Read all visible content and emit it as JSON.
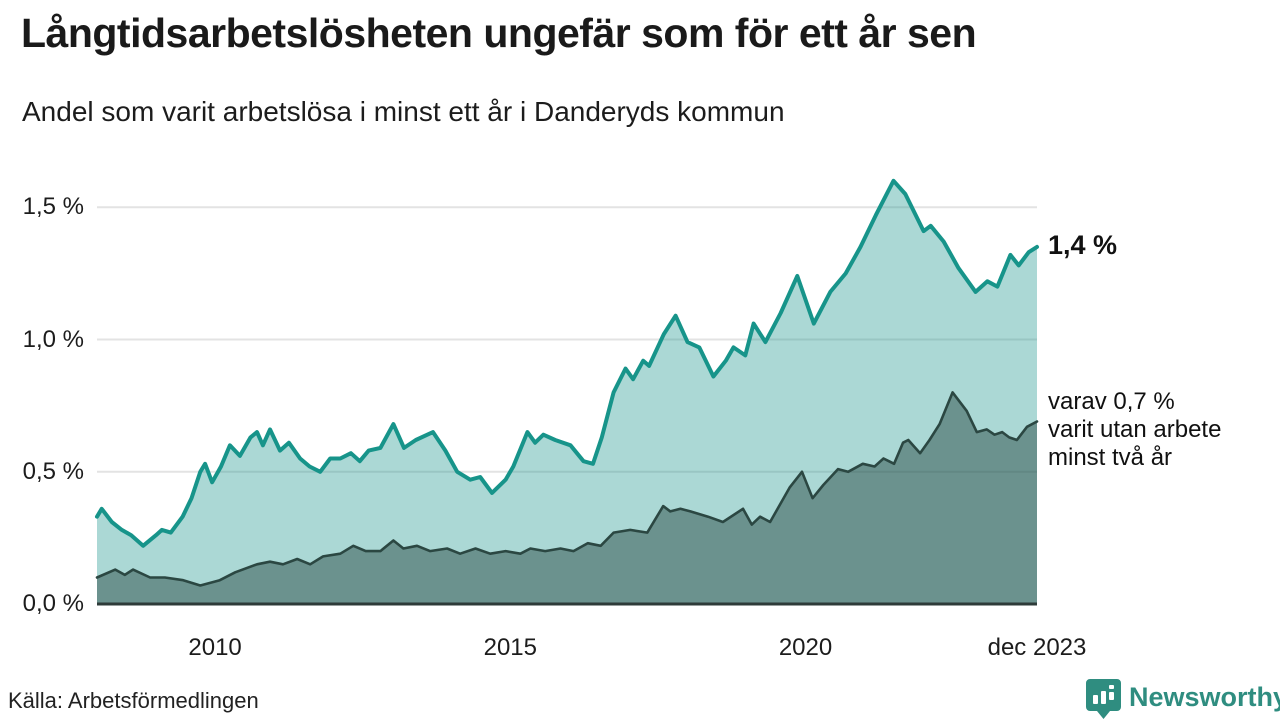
{
  "header": {
    "title": "Långtidsarbetslösheten ungefär som för ett år sen",
    "subtitle": "Andel som varit arbetslösa i minst ett år i Danderyds kommun"
  },
  "chart_data": {
    "type": "area",
    "title": "Långtidsarbetslösheten ungefär som för ett år sen",
    "subtitle": "Andel som varit arbetslösa i minst ett år i Danderyds kommun",
    "x_range": [
      2008.0,
      2023.92
    ],
    "y_range": [
      0,
      1.65
    ],
    "grid": "horizontal",
    "y_axis": {
      "ticks": [
        {
          "value": 0.0,
          "label": "0,0 %"
        },
        {
          "value": 0.5,
          "label": "0,5 %"
        },
        {
          "value": 1.0,
          "label": "1,0 %"
        },
        {
          "value": 1.5,
          "label": "1,5 %"
        }
      ]
    },
    "x_axis": {
      "ticks": [
        {
          "value": 2010,
          "label": "2010"
        },
        {
          "value": 2015,
          "label": "2015"
        },
        {
          "value": 2020,
          "label": "2020"
        },
        {
          "value": 2023.92,
          "label": "dec 2023"
        }
      ]
    },
    "series": [
      {
        "name": "minst ett år",
        "line_color": "#17948a",
        "fill_color": "rgba(23,148,138,0.36)",
        "line_width": 4,
        "points": [
          [
            2008.0,
            0.33
          ],
          [
            2008.08,
            0.36
          ],
          [
            2008.25,
            0.31
          ],
          [
            2008.42,
            0.28
          ],
          [
            2008.58,
            0.26
          ],
          [
            2008.78,
            0.22
          ],
          [
            2009.0,
            0.26
          ],
          [
            2009.1,
            0.28
          ],
          [
            2009.25,
            0.27
          ],
          [
            2009.45,
            0.33
          ],
          [
            2009.6,
            0.4
          ],
          [
            2009.75,
            0.5
          ],
          [
            2009.83,
            0.53
          ],
          [
            2009.95,
            0.46
          ],
          [
            2010.1,
            0.52
          ],
          [
            2010.25,
            0.6
          ],
          [
            2010.42,
            0.56
          ],
          [
            2010.6,
            0.63
          ],
          [
            2010.71,
            0.65
          ],
          [
            2010.81,
            0.6
          ],
          [
            2010.93,
            0.66
          ],
          [
            2011.1,
            0.58
          ],
          [
            2011.25,
            0.61
          ],
          [
            2011.44,
            0.55
          ],
          [
            2011.6,
            0.52
          ],
          [
            2011.78,
            0.5
          ],
          [
            2011.95,
            0.55
          ],
          [
            2012.12,
            0.55
          ],
          [
            2012.3,
            0.57
          ],
          [
            2012.45,
            0.54
          ],
          [
            2012.6,
            0.58
          ],
          [
            2012.8,
            0.59
          ],
          [
            2013.02,
            0.68
          ],
          [
            2013.2,
            0.59
          ],
          [
            2013.4,
            0.62
          ],
          [
            2013.69,
            0.65
          ],
          [
            2013.9,
            0.58
          ],
          [
            2014.1,
            0.5
          ],
          [
            2014.32,
            0.47
          ],
          [
            2014.49,
            0.48
          ],
          [
            2014.69,
            0.42
          ],
          [
            2014.92,
            0.47
          ],
          [
            2015.05,
            0.52
          ],
          [
            2015.29,
            0.65
          ],
          [
            2015.42,
            0.61
          ],
          [
            2015.56,
            0.64
          ],
          [
            2015.76,
            0.62
          ],
          [
            2016.02,
            0.6
          ],
          [
            2016.24,
            0.54
          ],
          [
            2016.4,
            0.53
          ],
          [
            2016.55,
            0.63
          ],
          [
            2016.75,
            0.8
          ],
          [
            2016.95,
            0.89
          ],
          [
            2017.08,
            0.85
          ],
          [
            2017.25,
            0.92
          ],
          [
            2017.35,
            0.9
          ],
          [
            2017.6,
            1.02
          ],
          [
            2017.8,
            1.09
          ],
          [
            2018.0,
            0.99
          ],
          [
            2018.2,
            0.97
          ],
          [
            2018.44,
            0.86
          ],
          [
            2018.65,
            0.92
          ],
          [
            2018.78,
            0.97
          ],
          [
            2018.98,
            0.94
          ],
          [
            2019.12,
            1.06
          ],
          [
            2019.32,
            0.99
          ],
          [
            2019.58,
            1.1
          ],
          [
            2019.86,
            1.24
          ],
          [
            2020.14,
            1.06
          ],
          [
            2020.42,
            1.18
          ],
          [
            2020.68,
            1.25
          ],
          [
            2020.93,
            1.35
          ],
          [
            2021.19,
            1.47
          ],
          [
            2021.49,
            1.6
          ],
          [
            2021.69,
            1.55
          ],
          [
            2022.0,
            1.41
          ],
          [
            2022.12,
            1.43
          ],
          [
            2022.34,
            1.37
          ],
          [
            2022.59,
            1.27
          ],
          [
            2022.88,
            1.18
          ],
          [
            2023.08,
            1.22
          ],
          [
            2023.25,
            1.2
          ],
          [
            2023.47,
            1.32
          ],
          [
            2023.61,
            1.28
          ],
          [
            2023.78,
            1.33
          ],
          [
            2023.92,
            1.35
          ]
        ]
      },
      {
        "name": "minst två år",
        "line_color": "#2b4742",
        "fill_color": "rgba(33,64,59,0.46)",
        "line_width": 2.6,
        "points": [
          [
            2008.0,
            0.1
          ],
          [
            2008.31,
            0.13
          ],
          [
            2008.47,
            0.11
          ],
          [
            2008.61,
            0.13
          ],
          [
            2008.9,
            0.1
          ],
          [
            2009.15,
            0.1
          ],
          [
            2009.46,
            0.09
          ],
          [
            2009.75,
            0.07
          ],
          [
            2010.08,
            0.09
          ],
          [
            2010.34,
            0.12
          ],
          [
            2010.71,
            0.15
          ],
          [
            2010.93,
            0.16
          ],
          [
            2011.15,
            0.15
          ],
          [
            2011.39,
            0.17
          ],
          [
            2011.61,
            0.15
          ],
          [
            2011.83,
            0.18
          ],
          [
            2012.12,
            0.19
          ],
          [
            2012.34,
            0.22
          ],
          [
            2012.55,
            0.2
          ],
          [
            2012.8,
            0.2
          ],
          [
            2013.02,
            0.24
          ],
          [
            2013.19,
            0.21
          ],
          [
            2013.42,
            0.22
          ],
          [
            2013.64,
            0.2
          ],
          [
            2013.93,
            0.21
          ],
          [
            2014.15,
            0.19
          ],
          [
            2014.41,
            0.21
          ],
          [
            2014.66,
            0.19
          ],
          [
            2014.92,
            0.2
          ],
          [
            2015.17,
            0.19
          ],
          [
            2015.34,
            0.21
          ],
          [
            2015.59,
            0.2
          ],
          [
            2015.85,
            0.21
          ],
          [
            2016.07,
            0.2
          ],
          [
            2016.31,
            0.23
          ],
          [
            2016.53,
            0.22
          ],
          [
            2016.75,
            0.27
          ],
          [
            2017.03,
            0.28
          ],
          [
            2017.32,
            0.27
          ],
          [
            2017.59,
            0.37
          ],
          [
            2017.71,
            0.35
          ],
          [
            2017.88,
            0.36
          ],
          [
            2018.05,
            0.35
          ],
          [
            2018.35,
            0.33
          ],
          [
            2018.6,
            0.31
          ],
          [
            2018.94,
            0.36
          ],
          [
            2019.09,
            0.3
          ],
          [
            2019.23,
            0.33
          ],
          [
            2019.4,
            0.31
          ],
          [
            2019.73,
            0.44
          ],
          [
            2019.94,
            0.5
          ],
          [
            2020.12,
            0.4
          ],
          [
            2020.3,
            0.45
          ],
          [
            2020.55,
            0.51
          ],
          [
            2020.72,
            0.5
          ],
          [
            2020.97,
            0.53
          ],
          [
            2021.17,
            0.52
          ],
          [
            2021.32,
            0.55
          ],
          [
            2021.5,
            0.53
          ],
          [
            2021.65,
            0.61
          ],
          [
            2021.74,
            0.62
          ],
          [
            2021.94,
            0.57
          ],
          [
            2022.1,
            0.62
          ],
          [
            2022.27,
            0.68
          ],
          [
            2022.49,
            0.8
          ],
          [
            2022.73,
            0.73
          ],
          [
            2022.9,
            0.65
          ],
          [
            2023.07,
            0.66
          ],
          [
            2023.2,
            0.64
          ],
          [
            2023.33,
            0.65
          ],
          [
            2023.45,
            0.63
          ],
          [
            2023.58,
            0.62
          ],
          [
            2023.75,
            0.67
          ],
          [
            2023.92,
            0.69
          ]
        ]
      }
    ],
    "annotations": {
      "end_value_label": "1,4 %",
      "sub_label_lines": [
        "varav 0,7 %",
        "varit utan arbete",
        "minst två år"
      ]
    },
    "colors": {
      "accent_teal": "#17948a",
      "dark_series": "#2b4742",
      "gridline": "#e3e3e3",
      "baseline": "#2e3b39"
    }
  },
  "footer": {
    "source": "Källa: Arbetsförmedlingen",
    "brand_name": "Newsworthy",
    "brand_color": "#2f8d80"
  }
}
